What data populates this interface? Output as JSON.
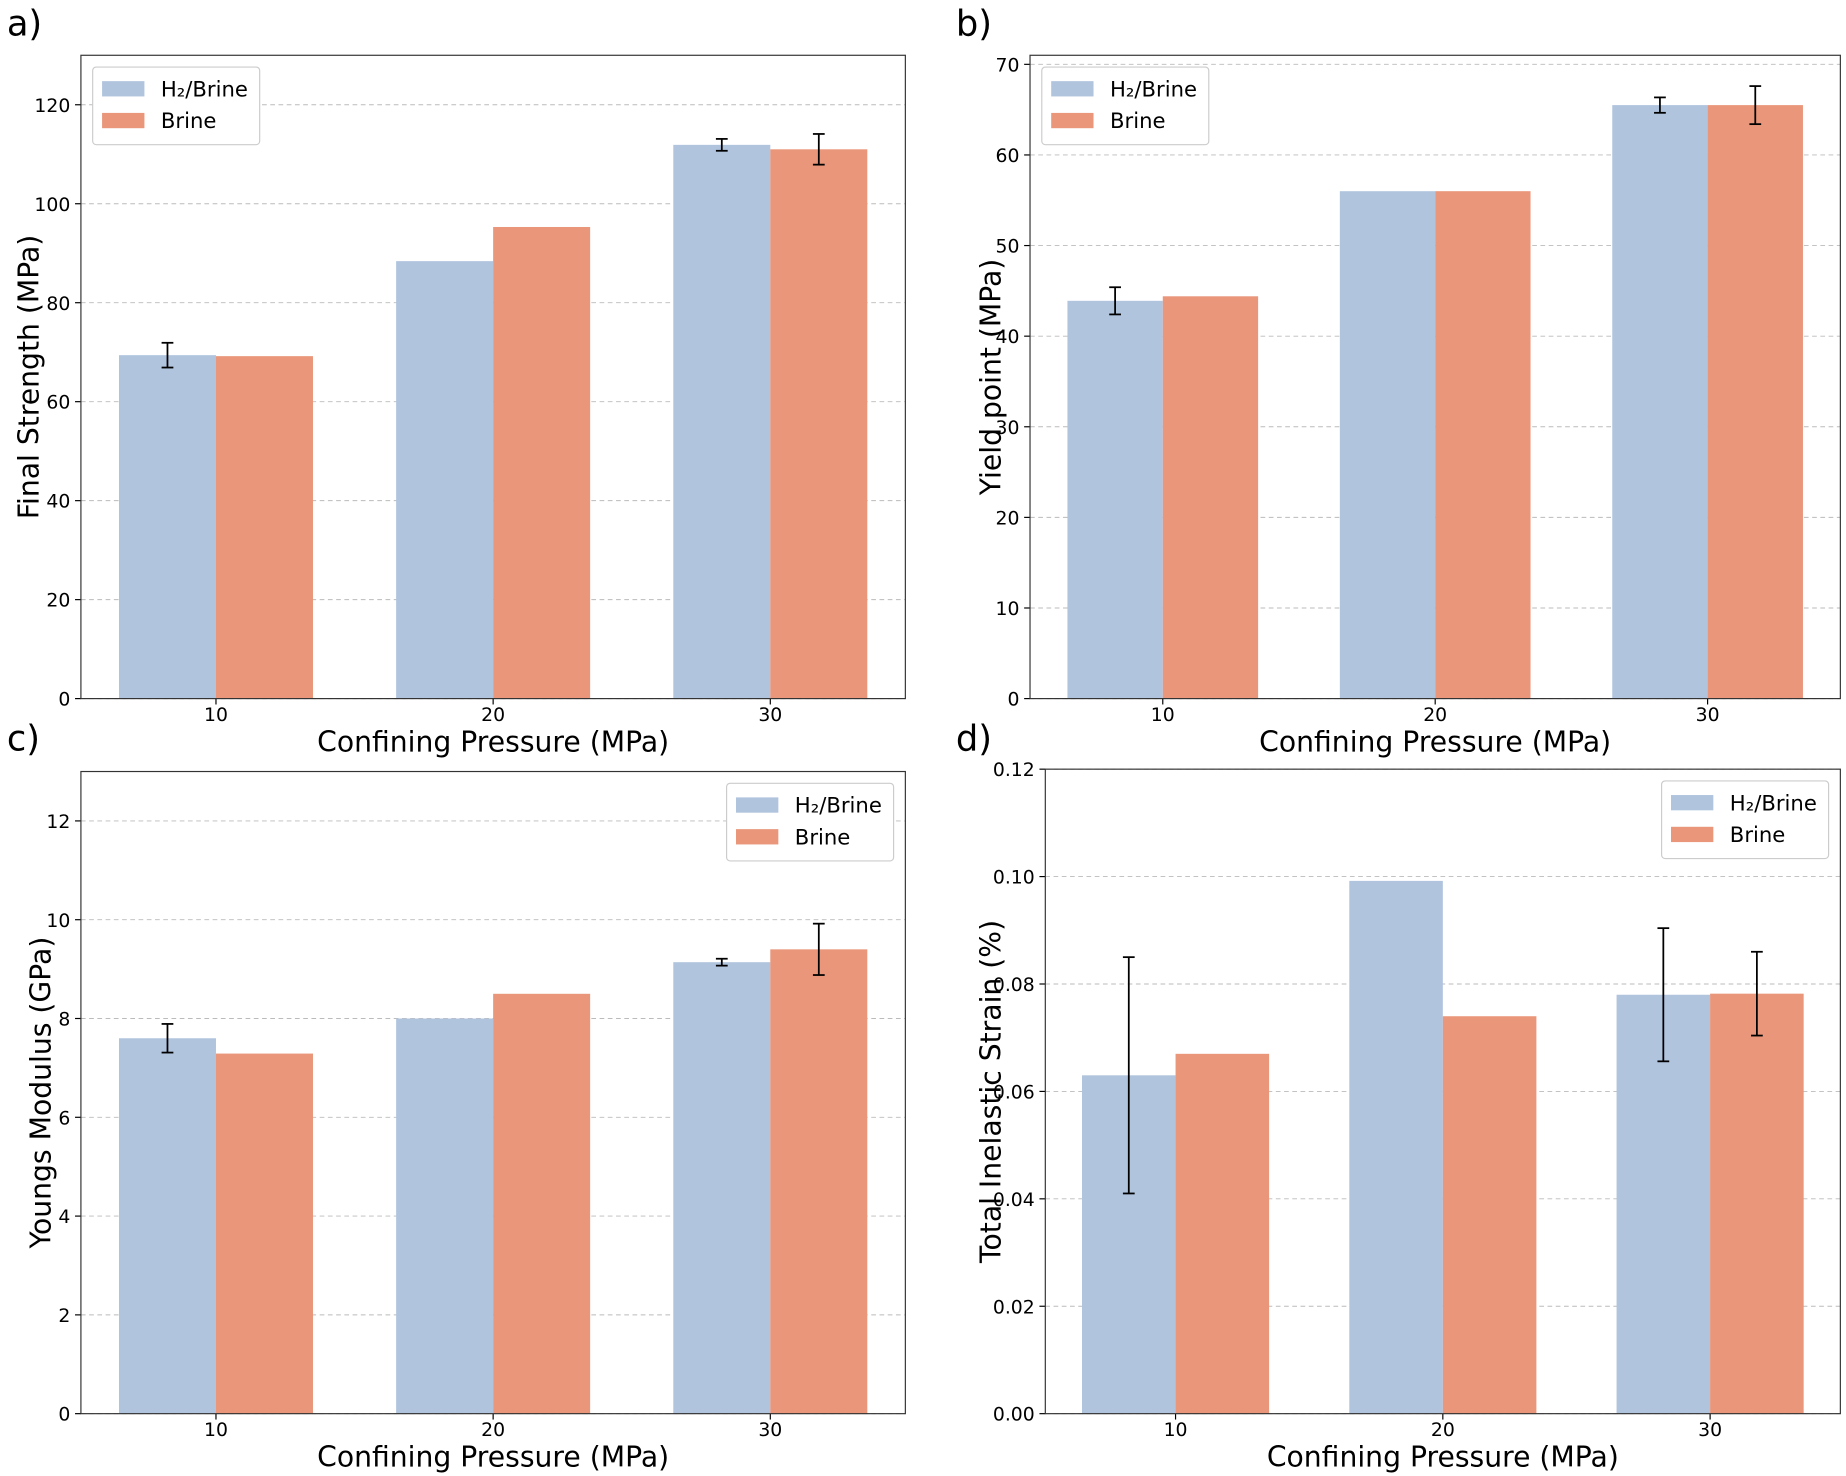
{
  "chart_data": [
    {
      "type": "bar",
      "panel_label": "a)",
      "xlabel": "Confining Pressure (MPa)",
      "ylabel": "Final Strength (MPa)",
      "categories": [
        "10",
        "20",
        "30"
      ],
      "series": [
        {
          "name": "H₂/Brine",
          "color": "#b0c4de",
          "values": [
            69.4,
            88.4,
            111.9
          ],
          "errors": [
            2.5,
            null,
            1.2
          ]
        },
        {
          "name": "Brine",
          "color": "#e9967a",
          "values": [
            69.2,
            95.3,
            111.0
          ],
          "errors": [
            null,
            null,
            3.1
          ]
        }
      ],
      "ylim": [
        0,
        130
      ],
      "yticks": [
        0,
        20,
        40,
        60,
        80,
        100,
        120
      ],
      "grid": true,
      "legend": "upper left"
    },
    {
      "type": "bar",
      "panel_label": "b)",
      "xlabel": "Confining Pressure (MPa)",
      "ylabel": "Yield point (MPa)",
      "categories": [
        "10",
        "20",
        "30"
      ],
      "series": [
        {
          "name": "H₂/Brine",
          "color": "#b0c4de",
          "values": [
            43.9,
            56.0,
            65.5
          ],
          "errors": [
            1.5,
            null,
            0.85
          ]
        },
        {
          "name": "Brine",
          "color": "#e9967a",
          "values": [
            44.4,
            56.0,
            65.5
          ],
          "errors": [
            null,
            null,
            2.1
          ]
        }
      ],
      "ylim": [
        0,
        71
      ],
      "yticks": [
        0,
        10,
        20,
        30,
        40,
        50,
        60,
        70
      ],
      "grid": true,
      "legend": "upper left"
    },
    {
      "type": "bar",
      "panel_label": "c)",
      "xlabel": "Confining Pressure (MPa)",
      "ylabel": "Youngs Modulus (GPa)",
      "categories": [
        "10",
        "20",
        "30"
      ],
      "series": [
        {
          "name": "H₂/Brine",
          "color": "#b0c4de",
          "values": [
            7.6,
            8.0,
            9.14
          ],
          "errors": [
            0.29,
            null,
            0.07
          ]
        },
        {
          "name": "Brine",
          "color": "#e9967a",
          "values": [
            7.29,
            8.5,
            9.4
          ],
          "errors": [
            null,
            null,
            0.52
          ]
        }
      ],
      "ylim": [
        0,
        13
      ],
      "yticks": [
        0,
        2,
        4,
        6,
        8,
        10,
        12
      ],
      "grid": true,
      "legend": "upper right"
    },
    {
      "type": "bar",
      "panel_label": "d)",
      "xlabel": "Confining Pressure (MPa)",
      "ylabel": "Total Inelastic Strain (%)",
      "categories": [
        "10",
        "20",
        "30"
      ],
      "series": [
        {
          "name": "H₂/Brine",
          "color": "#b0c4de",
          "values": [
            0.063,
            0.0992,
            0.078
          ],
          "errors": [
            0.022,
            null,
            0.0124
          ]
        },
        {
          "name": "Brine",
          "color": "#e9967a",
          "values": [
            0.067,
            0.074,
            0.0782
          ],
          "errors": [
            null,
            null,
            0.0078
          ]
        }
      ],
      "ylim": [
        0,
        0.12
      ],
      "yticks": [
        {
          "value": 0,
          "label": "0.00"
        },
        {
          "value": 0.02,
          "label": "0.02"
        },
        {
          "value": 0.04,
          "label": "0.04"
        },
        {
          "value": 0.06,
          "label": "0.06"
        },
        {
          "value": 0.08,
          "label": "0.08"
        },
        {
          "value": 0.1,
          "label": "0.10"
        },
        {
          "value": 0.12,
          "label": "0.12"
        }
      ],
      "grid": true,
      "legend": "upper right"
    }
  ]
}
